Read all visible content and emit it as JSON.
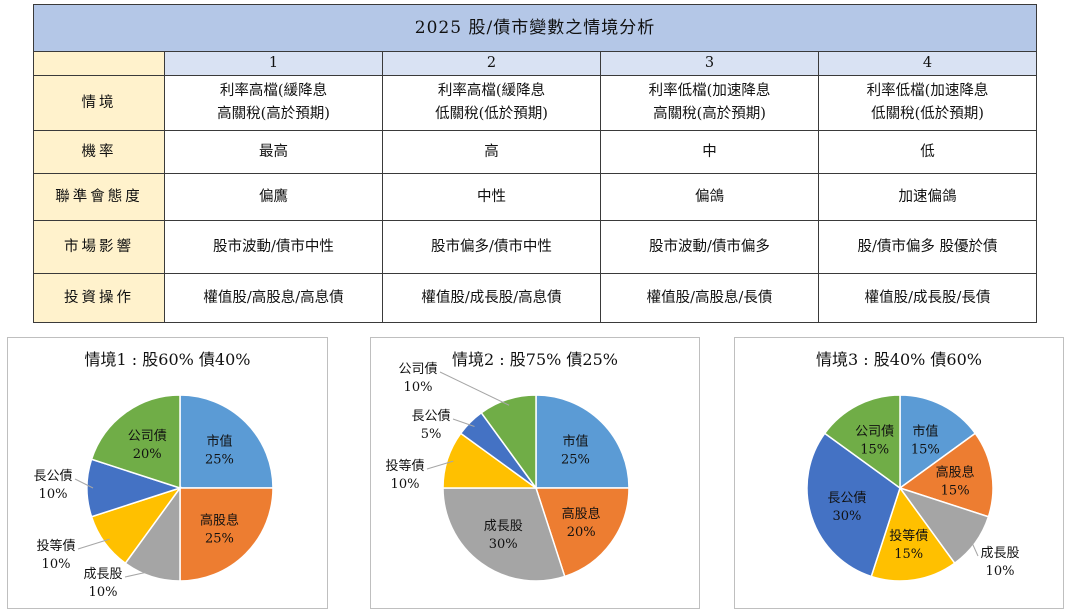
{
  "table": {
    "title": "2025 股/債市變數之情境分析",
    "columns": [
      "1",
      "2",
      "3",
      "4"
    ],
    "rows": [
      {
        "label": "情境",
        "cells": [
          [
            "利率高檔(緩降息",
            "高關稅(高於預期)"
          ],
          [
            "利率高檔(緩降息",
            "低關稅(低於預期)"
          ],
          [
            "利率低檔(加速降息",
            "高關稅(高於預期)"
          ],
          [
            "利率低檔(加速降息",
            "低關稅(低於預期)"
          ]
        ]
      },
      {
        "label": "機率",
        "cells": [
          [
            "最高"
          ],
          [
            "高"
          ],
          [
            "中"
          ],
          [
            "低"
          ]
        ]
      },
      {
        "label": "聯準會態度",
        "cells": [
          [
            "偏鷹"
          ],
          [
            "中性"
          ],
          [
            "偏鴿"
          ],
          [
            "加速偏鴿"
          ]
        ]
      },
      {
        "label": "市場影響",
        "cells": [
          [
            "股市波動/債市中性"
          ],
          [
            "股市偏多/債市中性"
          ],
          [
            "股市波動/債市偏多"
          ],
          [
            "股/債市偏多 股優於債"
          ]
        ]
      },
      {
        "label": "投資操作",
        "cells": [
          [
            "權值股/高股息/高息債"
          ],
          [
            "權值股/成長股/高息債"
          ],
          [
            "權值股/高股息/長債"
          ],
          [
            "權值股/成長股/長債"
          ]
        ]
      }
    ]
  },
  "colors": {
    "市值": "#5b9bd5",
    "高股息": "#ed7d31",
    "成長股": "#a5a5a5",
    "投等債": "#ffc000",
    "長公債": "#4472c4",
    "公司債": "#70ad47"
  },
  "chart_data": [
    {
      "type": "pie",
      "title": "情境1 : 股60% 債40%",
      "categories": [
        "市值",
        "高股息",
        "成長股",
        "投等債",
        "長公債",
        "公司債"
      ],
      "values": [
        25,
        25,
        10,
        10,
        10,
        20
      ],
      "labels": [
        "25%",
        "25%",
        "10%",
        "10%",
        "10%",
        "20%"
      ]
    },
    {
      "type": "pie",
      "title": "情境2 : 股75% 債25%",
      "categories": [
        "市值",
        "高股息",
        "成長股",
        "投等債",
        "長公債",
        "公司債"
      ],
      "values": [
        25,
        20,
        30,
        10,
        5,
        10
      ],
      "labels": [
        "25%",
        "20%",
        "30%",
        "10%",
        "5%",
        "10%"
      ]
    },
    {
      "type": "pie",
      "title": "情境3 : 股40% 債60%",
      "categories": [
        "市值",
        "高股息",
        "成長股",
        "投等債",
        "長公債",
        "公司債"
      ],
      "values": [
        15,
        15,
        10,
        15,
        30,
        15
      ],
      "labels": [
        "15%",
        "15%",
        "10%",
        "15%",
        "30%",
        "15%"
      ]
    }
  ]
}
